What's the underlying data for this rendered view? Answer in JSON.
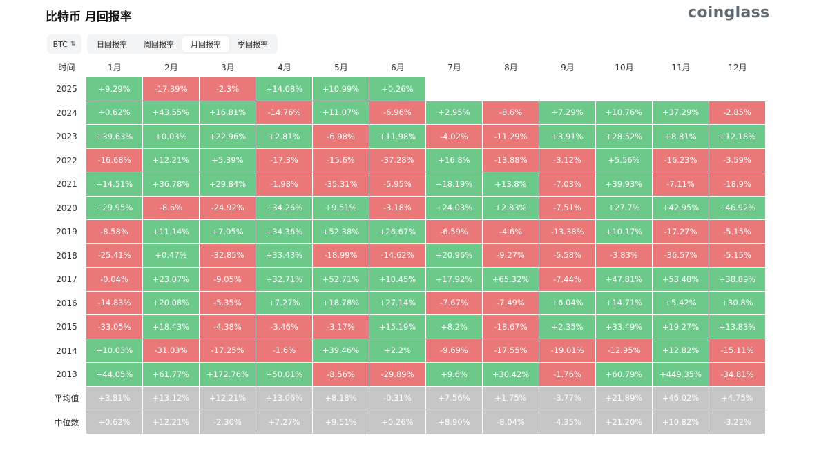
{
  "header": {
    "title": "比特币 月回报率",
    "logo": "coinglass"
  },
  "controls": {
    "asset_select": "BTC",
    "tabs": [
      "日回报率",
      "周回报率",
      "月回报率",
      "季回报率"
    ],
    "active_tab": 2
  },
  "colors": {
    "positive": "#6cc98a",
    "negative": "#eb7878",
    "stat": "#c6c6c6"
  },
  "table": {
    "year_header": "时间",
    "months": [
      "1月",
      "2月",
      "3月",
      "4月",
      "5月",
      "6月",
      "7月",
      "8月",
      "9月",
      "10月",
      "11月",
      "12月"
    ],
    "rows": [
      {
        "year": "2025",
        "values": [
          "+9.29%",
          "-17.39%",
          "-2.3%",
          "+14.08%",
          "+10.99%",
          "+0.26%",
          "",
          "",
          "",
          "",
          "",
          ""
        ]
      },
      {
        "year": "2024",
        "values": [
          "+0.62%",
          "+43.55%",
          "+16.81%",
          "-14.76%",
          "+11.07%",
          "-6.96%",
          "+2.95%",
          "-8.6%",
          "+7.29%",
          "+10.76%",
          "+37.29%",
          "-2.85%"
        ]
      },
      {
        "year": "2023",
        "values": [
          "+39.63%",
          "+0.03%",
          "+22.96%",
          "+2.81%",
          "-6.98%",
          "+11.98%",
          "-4.02%",
          "-11.29%",
          "+3.91%",
          "+28.52%",
          "+8.81%",
          "+12.18%"
        ]
      },
      {
        "year": "2022",
        "values": [
          "-16.68%",
          "+12.21%",
          "+5.39%",
          "-17.3%",
          "-15.6%",
          "-37.28%",
          "+16.8%",
          "-13.88%",
          "-3.12%",
          "+5.56%",
          "-16.23%",
          "-3.59%"
        ]
      },
      {
        "year": "2021",
        "values": [
          "+14.51%",
          "+36.78%",
          "+29.84%",
          "-1.98%",
          "-35.31%",
          "-5.95%",
          "+18.19%",
          "+13.8%",
          "-7.03%",
          "+39.93%",
          "-7.11%",
          "-18.9%"
        ]
      },
      {
        "year": "2020",
        "values": [
          "+29.95%",
          "-8.6%",
          "-24.92%",
          "+34.26%",
          "+9.51%",
          "-3.18%",
          "+24.03%",
          "+2.83%",
          "-7.51%",
          "+27.7%",
          "+42.95%",
          "+46.92%"
        ]
      },
      {
        "year": "2019",
        "values": [
          "-8.58%",
          "+11.14%",
          "+7.05%",
          "+34.36%",
          "+52.38%",
          "+26.67%",
          "-6.59%",
          "-4.6%",
          "-13.38%",
          "+10.17%",
          "-17.27%",
          "-5.15%"
        ]
      },
      {
        "year": "2018",
        "values": [
          "-25.41%",
          "+0.47%",
          "-32.85%",
          "+33.43%",
          "-18.99%",
          "-14.62%",
          "+20.96%",
          "-9.27%",
          "-5.58%",
          "-3.83%",
          "-36.57%",
          "-5.15%"
        ]
      },
      {
        "year": "2017",
        "values": [
          "-0.04%",
          "+23.07%",
          "-9.05%",
          "+32.71%",
          "+52.71%",
          "+10.45%",
          "+17.92%",
          "+65.32%",
          "-7.44%",
          "+47.81%",
          "+53.48%",
          "+38.89%"
        ]
      },
      {
        "year": "2016",
        "values": [
          "-14.83%",
          "+20.08%",
          "-5.35%",
          "+7.27%",
          "+18.78%",
          "+27.14%",
          "-7.67%",
          "-7.49%",
          "+6.04%",
          "+14.71%",
          "+5.42%",
          "+30.8%"
        ]
      },
      {
        "year": "2015",
        "values": [
          "-33.05%",
          "+18.43%",
          "-4.38%",
          "-3.46%",
          "-3.17%",
          "+15.19%",
          "+8.2%",
          "-18.67%",
          "+2.35%",
          "+33.49%",
          "+19.27%",
          "+13.83%"
        ]
      },
      {
        "year": "2014",
        "values": [
          "+10.03%",
          "-31.03%",
          "-17.25%",
          "-1.6%",
          "+39.46%",
          "+2.2%",
          "-9.69%",
          "-17.55%",
          "-19.01%",
          "-12.95%",
          "+12.82%",
          "-15.11%"
        ]
      },
      {
        "year": "2013",
        "values": [
          "+44.05%",
          "+61.77%",
          "+172.76%",
          "+50.01%",
          "-8.56%",
          "-29.89%",
          "+9.6%",
          "+30.42%",
          "-1.76%",
          "+60.79%",
          "+449.35%",
          "-34.81%"
        ]
      }
    ],
    "stats": [
      {
        "label": "平均值",
        "values": [
          "+3.81%",
          "+13.12%",
          "+12.21%",
          "+13.06%",
          "+8.18%",
          "-0.31%",
          "+7.56%",
          "+1.75%",
          "-3.77%",
          "+21.89%",
          "+46.02%",
          "+4.75%"
        ]
      },
      {
        "label": "中位数",
        "values": [
          "+0.62%",
          "+12.21%",
          "-2.30%",
          "+7.27%",
          "+9.51%",
          "+0.26%",
          "+8.90%",
          "-8.04%",
          "-4.35%",
          "+21.20%",
          "+10.82%",
          "-3.22%"
        ]
      }
    ]
  }
}
